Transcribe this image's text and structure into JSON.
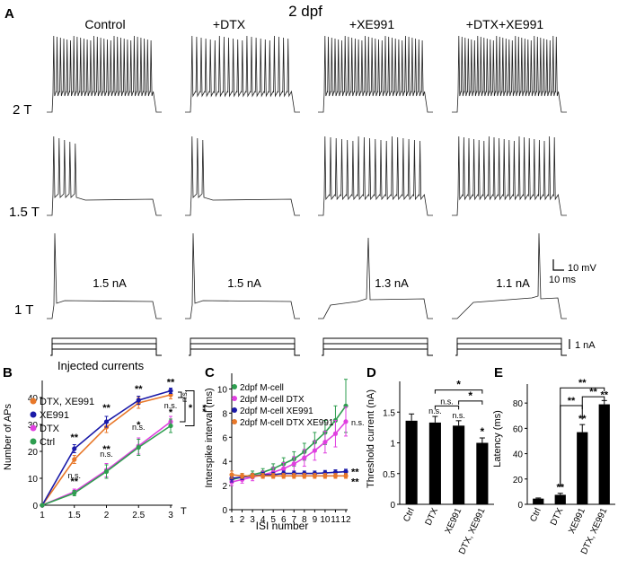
{
  "figure": {
    "panel_a": {
      "letter": "A",
      "title": "2 dpf",
      "columns": [
        "Control",
        "+DTX",
        "+XE991",
        "+DTX+XE991"
      ],
      "rows": [
        "2 T",
        "1.5 T",
        "1 T"
      ],
      "currents_1T": [
        "1.5 nA",
        "1.5 nA",
        "1.3 nA",
        "1.1 nA"
      ],
      "scale_voltage": "10 mV",
      "scale_time": "10 ms",
      "scale_current": "1 nA",
      "injected_label": "Injected currents"
    }
  },
  "chart_data": [
    {
      "panel": "B",
      "type": "line",
      "xlabel": "T",
      "ylabel": "Number of APs",
      "x": [
        1,
        1.5,
        2,
        2.5,
        3
      ],
      "xticks": [
        "1",
        "1.5",
        "2",
        "2.5",
        "3"
      ],
      "ylim": [
        0,
        45
      ],
      "yticks": [
        0,
        10,
        20,
        30,
        40
      ],
      "legend_placement": "top-left",
      "series": [
        {
          "name": "DTX, XE991",
          "color": "#e8782a",
          "values": [
            0,
            17,
            29,
            38,
            41
          ],
          "err": [
            0,
            1.5,
            2,
            2,
            1.5
          ]
        },
        {
          "name": "XE991",
          "color": "#1a1aa8",
          "values": [
            0,
            21,
            31,
            39,
            42.5
          ],
          "err": [
            0,
            1.5,
            2,
            1.5,
            1
          ]
        },
        {
          "name": "DTX",
          "color": "#e040e0",
          "values": [
            0,
            5,
            13,
            22,
            31
          ],
          "err": [
            0,
            1,
            2.5,
            3,
            2
          ]
        },
        {
          "name": "Ctrl",
          "color": "#2e9e4f",
          "values": [
            0,
            4.5,
            12.5,
            21.5,
            29.5
          ],
          "err": [
            0,
            1,
            2.5,
            3,
            2.5
          ]
        }
      ],
      "annotations": [
        {
          "x": 1.5,
          "label": "**"
        },
        {
          "x": 1.5,
          "label": "**"
        },
        {
          "x": 1.5,
          "label": "n.s."
        },
        {
          "x": 2,
          "label": "**"
        },
        {
          "x": 2,
          "label": "**"
        },
        {
          "x": 2,
          "label": "n.s."
        },
        {
          "x": 2.5,
          "label": "**"
        },
        {
          "x": 2.5,
          "label": "*"
        },
        {
          "x": 2.5,
          "label": "n.s."
        },
        {
          "x": 3,
          "label": "**"
        },
        {
          "x": 3,
          "label": "*"
        },
        {
          "x": 3,
          "label": "n.s."
        }
      ],
      "bracket_labels": [
        "n.s.",
        "*",
        "**"
      ]
    },
    {
      "panel": "C",
      "type": "line",
      "xlabel": "ISI number",
      "ylabel": "Interspike interval (ms)",
      "x": [
        1,
        2,
        3,
        4,
        5,
        6,
        7,
        8,
        9,
        10,
        11,
        12
      ],
      "ylim": [
        0,
        11
      ],
      "yticks": [
        0,
        2,
        4,
        6,
        8,
        10
      ],
      "legend_placement": "top-left",
      "series": [
        {
          "name": "2dpf M-cell",
          "color": "#2e9e4f",
          "values": [
            2.5,
            2.7,
            2.9,
            3.1,
            3.4,
            3.8,
            4.2,
            4.8,
            5.6,
            6.4,
            7.4,
            8.6
          ],
          "err": [
            0.3,
            0.3,
            0.3,
            0.3,
            0.4,
            0.5,
            0.6,
            0.7,
            0.8,
            1.0,
            1.2,
            2.2
          ]
        },
        {
          "name": "2dpf M-cell DTX",
          "color": "#e040e0",
          "values": [
            2.3,
            2.5,
            2.7,
            2.9,
            3.1,
            3.4,
            3.8,
            4.3,
            4.9,
            5.6,
            6.3,
            7.3
          ],
          "err": [
            0.3,
            0.3,
            0.3,
            0.3,
            0.4,
            0.5,
            0.6,
            0.7,
            0.8,
            0.9,
            1.1,
            1.2
          ]
        },
        {
          "name": "2dpf M-cell XE991",
          "color": "#1a1aa8",
          "values": [
            2.6,
            2.7,
            2.8,
            2.9,
            2.9,
            3.0,
            3.0,
            3.0,
            3.0,
            3.05,
            3.1,
            3.15
          ],
          "err": [
            0.3,
            0.2,
            0.2,
            0.2,
            0.2,
            0.2,
            0.2,
            0.2,
            0.2,
            0.2,
            0.2,
            0.2
          ]
        },
        {
          "name": "2dpf M-cell DTX XE991",
          "color": "#e8782a",
          "values": [
            2.9,
            2.8,
            2.8,
            2.8,
            2.8,
            2.8,
            2.8,
            2.8,
            2.8,
            2.8,
            2.8,
            2.8
          ],
          "err": [
            0.3,
            0.2,
            0.2,
            0.2,
            0.2,
            0.2,
            0.2,
            0.2,
            0.2,
            0.2,
            0.2,
            0.2
          ]
        }
      ],
      "annotations": [
        "n.s.",
        "**",
        "**"
      ]
    },
    {
      "panel": "D",
      "type": "bar",
      "ylabel": "Threshold current (nA)",
      "categories": [
        "Ctrl",
        "DTX",
        "XE991",
        "DTX, XE991"
      ],
      "values": [
        1.36,
        1.33,
        1.28,
        1.0
      ],
      "err": [
        0.11,
        0.1,
        0.08,
        0.08
      ],
      "ylim": [
        0,
        2.0
      ],
      "yticks": [
        0,
        0.5,
        1.0,
        1.5
      ],
      "annotations": [
        "n.s.",
        "n.s.",
        "*"
      ],
      "bracket_labels": [
        "*",
        "*",
        "n.s."
      ]
    },
    {
      "panel": "E",
      "type": "bar",
      "ylabel": "Latency (ms)",
      "categories": [
        "Ctrl",
        "DTX",
        "XE991",
        "DTX, XE991"
      ],
      "values": [
        4.5,
        7.5,
        57,
        79
      ],
      "err": [
        0.5,
        1.2,
        6,
        3
      ],
      "ylim": [
        0,
        95
      ],
      "yticks": [
        0,
        20,
        40,
        60,
        80
      ],
      "annotations": [
        "**",
        "**",
        "**"
      ],
      "bracket_labels": [
        "**",
        "**",
        "**"
      ]
    }
  ]
}
